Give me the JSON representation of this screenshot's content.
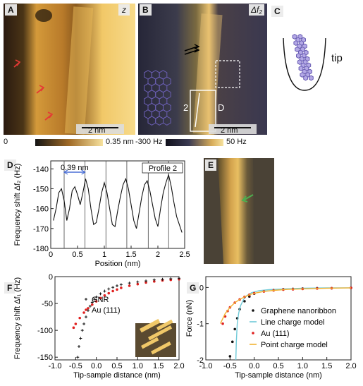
{
  "panels": {
    "A": {
      "letter": "A",
      "channel": "z",
      "scalebar": "2 nm"
    },
    "B": {
      "letter": "B",
      "channel": "Δf₂",
      "scalebar": "2 nm",
      "profile_label": "2",
      "profile_label_d": "D"
    },
    "C": {
      "letter": "C",
      "tip_label": "tip"
    },
    "E": {
      "letter": "E"
    }
  },
  "colorbars": {
    "A": {
      "min": "0",
      "max": "0.35 nm"
    },
    "B": {
      "min": "-300 Hz",
      "max": "50 Hz"
    }
  },
  "colors": {
    "afm_dark": "#141414",
    "afm_mid": "#b5732a",
    "afm_light": "#f5d68a",
    "arrow_red": "#e53935",
    "arrow_green": "#4caf50",
    "hexagon_blue": "#6b5fb4",
    "gnr_series": "#111111",
    "au_series": "#e0201f",
    "line_model": "#6fcad8",
    "point_model": "#f2b233"
  },
  "chart_data": [
    {
      "panel": "D",
      "type": "line",
      "xlabel": "Position (nm)",
      "ylabel": "Frequency shift Δf₂ (Hz)",
      "annotation": "Profile 2",
      "spacing_label": "0.39 nm",
      "xlim": [
        0,
        2.5
      ],
      "ylim": [
        -180,
        -136
      ],
      "xticks": [
        "0",
        "0.5",
        "1",
        "1.5",
        "2",
        "2.5"
      ],
      "yticks": [
        "-140",
        "-150",
        "-160",
        "-170",
        "-180"
      ],
      "x": [
        0.05,
        0.1,
        0.15,
        0.2,
        0.25,
        0.3,
        0.35,
        0.4,
        0.45,
        0.5,
        0.55,
        0.6,
        0.65,
        0.7,
        0.75,
        0.8,
        0.85,
        0.9,
        0.95,
        1.0,
        1.05,
        1.1,
        1.15,
        1.2,
        1.25,
        1.3,
        1.35,
        1.4,
        1.45,
        1.5,
        1.55,
        1.6,
        1.65,
        1.7,
        1.75,
        1.8,
        1.85,
        1.9,
        1.95,
        2.0,
        2.05,
        2.1,
        2.15,
        2.2,
        2.25,
        2.3,
        2.35,
        2.4,
        2.45
      ],
      "y": [
        -166,
        -160,
        -152,
        -150,
        -156,
        -166,
        -160,
        -151,
        -149,
        -153,
        -158,
        -152,
        -145,
        -150,
        -160,
        -168,
        -167,
        -160,
        -152,
        -147,
        -152,
        -160,
        -168,
        -169,
        -161,
        -154,
        -148,
        -145,
        -150,
        -158,
        -166,
        -170,
        -162,
        -154,
        -148,
        -146,
        -151,
        -158,
        -165,
        -169,
        -160,
        -152,
        -147,
        -143,
        -149,
        -157,
        -164,
        -168,
        -172
      ],
      "vlines": [
        0.25,
        0.64,
        1.03,
        1.42,
        1.82,
        2.2
      ]
    },
    {
      "panel": "F",
      "type": "scatter",
      "xlabel": "Tip-sample distance (nm)",
      "ylabel": "Frequency shift Δf₁ (Hz)",
      "xlim": [
        -1.0,
        2.0
      ],
      "ylim": [
        -155,
        0
      ],
      "xticks": [
        "-1.0",
        "-0.5",
        "0.0",
        "0.5",
        "1.0",
        "1.5",
        "2.0"
      ],
      "yticks": [
        "0",
        "-50",
        "-100",
        "-150"
      ],
      "series": [
        {
          "name": "GNR",
          "marker": "+",
          "x": [
            -0.45,
            -0.42,
            -0.38,
            -0.34,
            -0.3,
            -0.25,
            -0.2,
            -0.15,
            -0.1,
            -0.05,
            0.0,
            0.1,
            0.2,
            0.3,
            0.4,
            0.5,
            0.6,
            0.8,
            1.0,
            1.2,
            1.4,
            1.6,
            1.8,
            2.0
          ],
          "y": [
            -150,
            -130,
            -115,
            -100,
            -88,
            -75,
            -63,
            -55,
            -48,
            -42,
            -38,
            -32,
            -27,
            -23,
            -20,
            -17,
            -15,
            -12,
            -10,
            -8,
            -6,
            -5,
            -4,
            -3
          ]
        },
        {
          "name": "Au (111)",
          "marker": "dot",
          "x": [
            -0.55,
            -0.5,
            -0.4,
            -0.3,
            -0.2,
            -0.1,
            0.0,
            0.1,
            0.2,
            0.3,
            0.4,
            0.5,
            0.6,
            0.8,
            1.0,
            1.2,
            1.4,
            1.6,
            1.8,
            2.0
          ],
          "y": [
            -95,
            -88,
            -77,
            -67,
            -59,
            -52,
            -46,
            -40,
            -35,
            -31,
            -27,
            -24,
            -21,
            -17,
            -14,
            -11,
            -9,
            -7,
            -6,
            -5
          ]
        }
      ]
    },
    {
      "panel": "G",
      "type": "scatter",
      "xlabel": "Tip-sample distance (nm)",
      "ylabel": "Force (nN)",
      "xlim": [
        -1.0,
        2.0
      ],
      "ylim": [
        -2.0,
        0.3
      ],
      "xticks": [
        "-1.0",
        "-0.5",
        "0.0",
        "0.5",
        "1.0",
        "1.5",
        "2.0"
      ],
      "yticks": [
        "0",
        "-1",
        "-2"
      ],
      "series": [
        {
          "name": "Graphene nanoribbon",
          "marker": "dot",
          "color": "#111111",
          "x": [
            -0.5,
            -0.45,
            -0.4,
            -0.35,
            -0.3,
            -0.2,
            -0.1,
            0.0,
            0.2,
            0.4,
            0.6,
            0.8,
            1.0,
            1.3,
            1.6,
            2.0
          ],
          "y": [
            -1.9,
            -1.5,
            -1.15,
            -0.85,
            -0.6,
            -0.38,
            -0.25,
            -0.17,
            -0.1,
            -0.07,
            -0.05,
            -0.04,
            -0.03,
            -0.02,
            -0.02,
            -0.01
          ]
        },
        {
          "name": "Line charge model",
          "marker": "line",
          "color": "#6fcad8",
          "x": [
            -0.38,
            -0.37,
            -0.35,
            -0.32,
            -0.28,
            -0.22,
            -0.15,
            -0.05,
            0.1,
            0.3,
            0.6,
            1.0,
            1.5,
            2.0
          ],
          "y": [
            -2.0,
            -1.5,
            -1.0,
            -0.7,
            -0.5,
            -0.33,
            -0.22,
            -0.14,
            -0.09,
            -0.06,
            -0.04,
            -0.02,
            -0.01,
            -0.01
          ]
        },
        {
          "name": "Au (111)",
          "marker": "dot",
          "color": "#e0201f",
          "x": [
            -0.65,
            -0.6,
            -0.55,
            -0.5,
            -0.4,
            -0.3,
            -0.2,
            -0.1,
            0.0,
            0.2,
            0.4,
            0.6,
            0.8,
            1.0,
            1.3,
            1.6,
            2.0
          ],
          "y": [
            -1.0,
            -0.8,
            -0.65,
            -0.55,
            -0.42,
            -0.33,
            -0.26,
            -0.2,
            -0.16,
            -0.11,
            -0.08,
            -0.06,
            -0.05,
            -0.04,
            -0.03,
            -0.02,
            -0.01
          ]
        },
        {
          "name": "Point charge model",
          "marker": "line",
          "color": "#f2b233",
          "x": [
            -0.7,
            -0.6,
            -0.5,
            -0.4,
            -0.3,
            -0.2,
            -0.1,
            0.0,
            0.2,
            0.4,
            0.7,
            1.0,
            1.5,
            2.0
          ],
          "y": [
            -1.0,
            -0.72,
            -0.55,
            -0.42,
            -0.33,
            -0.26,
            -0.2,
            -0.16,
            -0.11,
            -0.08,
            -0.05,
            -0.04,
            -0.02,
            -0.01
          ]
        }
      ]
    }
  ]
}
